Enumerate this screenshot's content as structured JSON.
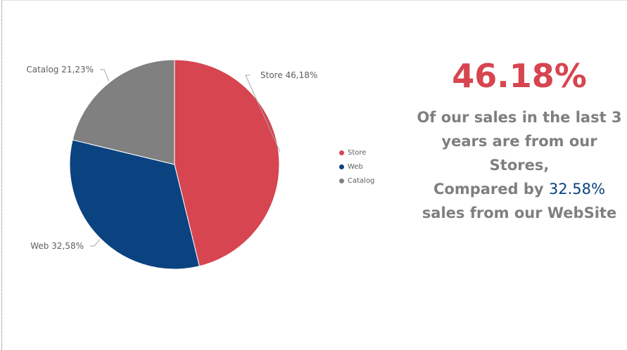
{
  "chart_data": {
    "type": "pie",
    "slices": [
      {
        "name": "Store",
        "value": 46.18,
        "label": "Store 46,18%",
        "color": "#d64550"
      },
      {
        "name": "Web",
        "value": 32.58,
        "label": "Web 32,58%",
        "color": "#0b4380"
      },
      {
        "name": "Catalog",
        "value": 21.23,
        "label": "Catalog 21,23%",
        "color": "#808080"
      }
    ],
    "legend": {
      "placement": "right",
      "items": [
        "Store",
        "Web",
        "Catalog"
      ]
    }
  },
  "kpi": {
    "value": "46.18%",
    "value_color": "#d64550",
    "line1": "Of our sales in the last 3",
    "line2": "years are from our",
    "line3": "Stores,",
    "line4_prefix": "Compared by",
    "line4_highlight": "32.58%",
    "line5": "sales from our WebSite",
    "text_color": "#7f7f7f",
    "highlight_color": "#0b4380"
  }
}
